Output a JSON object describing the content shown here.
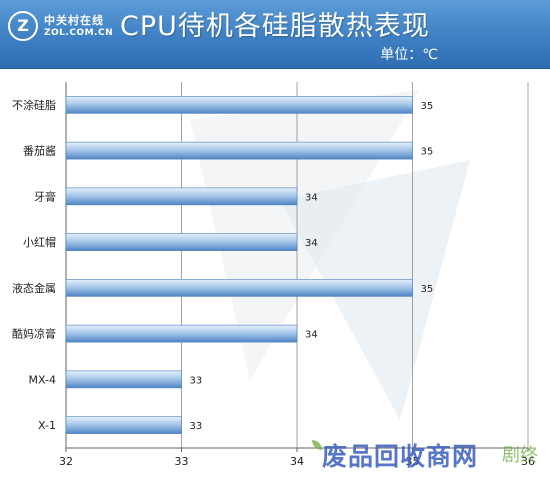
{
  "header": {
    "logo_name": "中关村在线",
    "logo_site": "ZOL.COM.CN",
    "logo_icon": "zol-logo-icon"
  },
  "chart_data": {
    "type": "bar",
    "orientation": "horizontal",
    "title": "CPU待机各硅脂散热表现",
    "subtitle": "单位：℃",
    "categories": [
      "不涂硅脂",
      "番茄酱",
      "牙膏",
      "小红帽",
      "液态金属",
      "酷妈凉膏",
      "MX-4",
      "X-1"
    ],
    "values": [
      35,
      35,
      34,
      34,
      35,
      34,
      33,
      33
    ],
    "xlim": [
      32,
      36
    ],
    "xticks": [
      32,
      33,
      34,
      35,
      36
    ],
    "grid": true,
    "bar_color": "#6a9bd2",
    "grid_color": "#8c8c8c"
  },
  "watermark": {
    "text": "废品回收商网",
    "sub": "剧终"
  }
}
